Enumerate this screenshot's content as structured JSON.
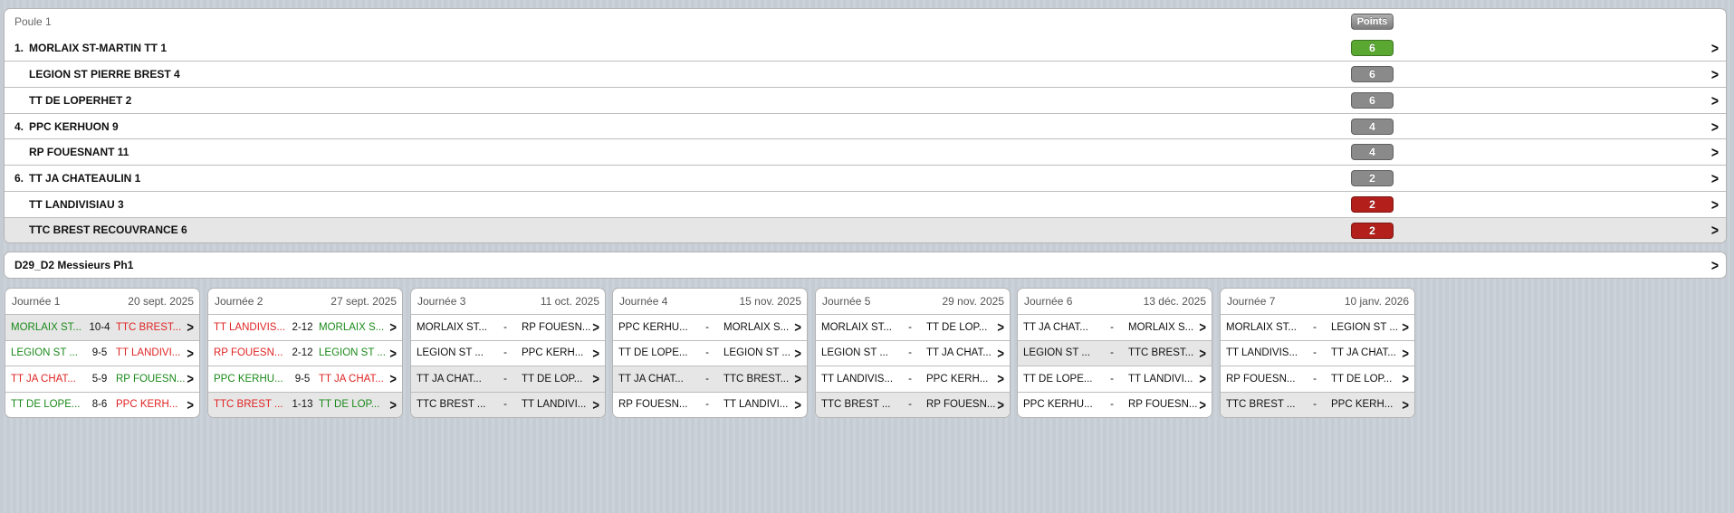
{
  "poule": {
    "title": "Poule 1",
    "points_label": "Points",
    "teams": [
      {
        "rank": "1.",
        "name": "MORLAIX ST-MARTIN TT 1",
        "points": "6",
        "color": "#5aa832"
      },
      {
        "rank": "",
        "name": "LEGION ST PIERRE BREST 4",
        "points": "6",
        "color": "#8a8a8a"
      },
      {
        "rank": "",
        "name": "TT DE LOPERHET 2",
        "points": "6",
        "color": "#8a8a8a"
      },
      {
        "rank": "4.",
        "name": "PPC KERHUON 9",
        "points": "4",
        "color": "#8a8a8a"
      },
      {
        "rank": "",
        "name": "RP FOUESNANT 11",
        "points": "4",
        "color": "#8a8a8a"
      },
      {
        "rank": "6.",
        "name": "TT JA CHATEAULIN 1",
        "points": "2",
        "color": "#8a8a8a"
      },
      {
        "rank": "",
        "name": "TT LANDIVISIAU 3",
        "points": "2",
        "color": "#b3201c"
      },
      {
        "rank": "",
        "name": "TTC BREST RECOUVRANCE 6",
        "points": "2",
        "color": "#b3201c"
      }
    ]
  },
  "division": {
    "title": "D29_D2 Messieurs Ph1"
  },
  "journees": [
    {
      "label": "Journée 1",
      "date": "20 sept. 2025",
      "matches": [
        {
          "home": "MORLAIX ST...",
          "score": "10-4",
          "away": "TTC BREST...",
          "hr": "w",
          "ar": "l",
          "sel": true
        },
        {
          "home": "LEGION ST ...",
          "score": "9-5",
          "away": "TT LANDIVI...",
          "hr": "w",
          "ar": "l"
        },
        {
          "home": "TT JA CHAT...",
          "score": "5-9",
          "away": "RP FOUESN...",
          "hr": "l",
          "ar": "w"
        },
        {
          "home": "TT DE LOPE...",
          "score": "8-6",
          "away": "PPC KERH...",
          "hr": "w",
          "ar": "l"
        }
      ]
    },
    {
      "label": "Journée 2",
      "date": "27 sept. 2025",
      "matches": [
        {
          "home": "TT LANDIVIS...",
          "score": "2-12",
          "away": "MORLAIX S...",
          "hr": "l",
          "ar": "w"
        },
        {
          "home": "RP FOUESN...",
          "score": "2-12",
          "away": "LEGION ST ...",
          "hr": "l",
          "ar": "w"
        },
        {
          "home": "PPC KERHU...",
          "score": "9-5",
          "away": "TT JA CHAT...",
          "hr": "w",
          "ar": "l"
        },
        {
          "home": "TTC BREST ...",
          "score": "1-13",
          "away": "TT DE LOP...",
          "hr": "l",
          "ar": "w",
          "sel": true
        }
      ]
    },
    {
      "label": "Journée 3",
      "date": "11 oct. 2025",
      "matches": [
        {
          "home": "MORLAIX ST...",
          "score": "-",
          "away": "RP FOUESN..."
        },
        {
          "home": "LEGION ST ...",
          "score": "-",
          "away": "PPC KERH..."
        },
        {
          "home": "TT JA CHAT...",
          "score": "-",
          "away": "TT DE LOP...",
          "sel": true
        },
        {
          "home": "TTC BREST ...",
          "score": "-",
          "away": "TT LANDIVI...",
          "sel": true
        }
      ]
    },
    {
      "label": "Journée 4",
      "date": "15 nov. 2025",
      "matches": [
        {
          "home": "PPC KERHU...",
          "score": "-",
          "away": "MORLAIX S..."
        },
        {
          "home": "TT DE LOPE...",
          "score": "-",
          "away": "LEGION ST ..."
        },
        {
          "home": "TT JA CHAT...",
          "score": "-",
          "away": "TTC BREST...",
          "sel": true
        },
        {
          "home": "RP FOUESN...",
          "score": "-",
          "away": "TT LANDIVI..."
        }
      ]
    },
    {
      "label": "Journée 5",
      "date": "29 nov. 2025",
      "matches": [
        {
          "home": "MORLAIX ST...",
          "score": "-",
          "away": "TT DE LOP..."
        },
        {
          "home": "LEGION ST ...",
          "score": "-",
          "away": "TT JA CHAT..."
        },
        {
          "home": "TT LANDIVIS...",
          "score": "-",
          "away": "PPC KERH..."
        },
        {
          "home": "TTC BREST ...",
          "score": "-",
          "away": "RP FOUESN...",
          "sel": true
        }
      ]
    },
    {
      "label": "Journée 6",
      "date": "13 déc. 2025",
      "matches": [
        {
          "home": "TT JA CHAT...",
          "score": "-",
          "away": "MORLAIX S..."
        },
        {
          "home": "LEGION ST ...",
          "score": "-",
          "away": "TTC BREST...",
          "sel": true
        },
        {
          "home": "TT DE LOPE...",
          "score": "-",
          "away": "TT LANDIVI..."
        },
        {
          "home": "PPC KERHU...",
          "score": "-",
          "away": "RP FOUESN..."
        }
      ]
    },
    {
      "label": "Journée 7",
      "date": "10 janv. 2026",
      "matches": [
        {
          "home": "MORLAIX ST...",
          "score": "-",
          "away": "LEGION ST ..."
        },
        {
          "home": "TT LANDIVIS...",
          "score": "-",
          "away": "TT JA CHAT..."
        },
        {
          "home": "RP FOUESN...",
          "score": "-",
          "away": "TT DE LOP..."
        },
        {
          "home": "TTC BREST ...",
          "score": "-",
          "away": "PPC KERH...",
          "sel": true
        }
      ]
    }
  ]
}
